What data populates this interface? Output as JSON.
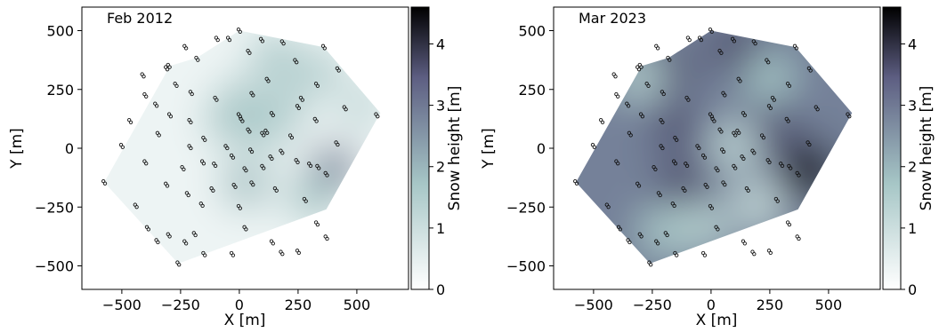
{
  "chart_data": [
    {
      "type": "heatmap",
      "title": "Feb 2012",
      "xlabel": "X [m]",
      "ylabel": "Y [m]",
      "xlim": [
        -670,
        720
      ],
      "ylim": [
        -600,
        600
      ],
      "xticks": [
        -500,
        -250,
        0,
        250,
        500
      ],
      "yticks": [
        -500,
        -250,
        0,
        250,
        500
      ],
      "xticklabels": [
        "−500",
        "−250",
        "0",
        "250",
        "500"
      ],
      "yticklabels": [
        "−500",
        "−250",
        "0",
        "250",
        "500"
      ],
      "colorbar": {
        "label": "Snow height [m]",
        "range": [
          0,
          4.6
        ],
        "ticks": [
          0,
          1,
          2,
          3,
          4
        ],
        "colormap": "bone_r"
      },
      "base_value": 0.3,
      "blobs": [
        {
          "x": 150,
          "y": 390,
          "value": 1.4
        },
        {
          "x": 340,
          "y": 330,
          "value": 1.2
        },
        {
          "x": 10,
          "y": 200,
          "value": 1.3
        },
        {
          "x": 200,
          "y": 180,
          "value": 1.2
        },
        {
          "x": -40,
          "y": 120,
          "value": 1.5
        },
        {
          "x": 110,
          "y": 90,
          "value": 1.4
        },
        {
          "x": 400,
          "y": -90,
          "value": 2.6
        },
        {
          "x": 310,
          "y": -210,
          "value": 1.5
        },
        {
          "x": 30,
          "y": -150,
          "value": 1.6
        },
        {
          "x": 520,
          "y": 180,
          "value": 1.0
        }
      ]
    },
    {
      "type": "heatmap",
      "title": "Mar 2023",
      "xlabel": "X [m]",
      "ylabel": "Y [m]",
      "xlim": [
        -670,
        720
      ],
      "ylim": [
        -600,
        600
      ],
      "xticks": [
        -500,
        -250,
        0,
        250,
        500
      ],
      "yticks": [
        -500,
        -250,
        0,
        250,
        500
      ],
      "xticklabels": [
        "−500",
        "−250",
        "0",
        "250",
        "500"
      ],
      "yticklabels": [
        "−500",
        "−250",
        "0",
        "250",
        "500"
      ],
      "colorbar": {
        "label": "Snow height [m]",
        "range": [
          0,
          4.6
        ],
        "ticks": [
          0,
          1,
          2,
          3,
          4
        ],
        "colormap": "bone_r"
      },
      "base_value": 2.5,
      "blobs": [
        {
          "x": 420,
          "y": -100,
          "value": 4.6
        },
        {
          "x": 100,
          "y": 430,
          "value": 3.3
        },
        {
          "x": -180,
          "y": 330,
          "value": 3.3
        },
        {
          "x": -150,
          "y": 90,
          "value": 3.2
        },
        {
          "x": -120,
          "y": -150,
          "value": 3.3
        },
        {
          "x": 280,
          "y": 70,
          "value": 3.2
        },
        {
          "x": -300,
          "y": 300,
          "value": 1.3
        },
        {
          "x": 100,
          "y": 10,
          "value": 1.1
        },
        {
          "x": 200,
          "y": -240,
          "value": 1.0
        },
        {
          "x": -30,
          "y": -330,
          "value": 1.2
        },
        {
          "x": 250,
          "y": 300,
          "value": 1.5
        },
        {
          "x": -200,
          "y": -350,
          "value": 1.4
        }
      ]
    }
  ],
  "station_points": [
    [
      0,
      500
    ],
    [
      -45,
      465
    ],
    [
      -95,
      465
    ],
    [
      95,
      460
    ],
    [
      185,
      450
    ],
    [
      360,
      430
    ],
    [
      -230,
      430
    ],
    [
      40,
      410
    ],
    [
      -180,
      380
    ],
    [
      -300,
      350
    ],
    [
      -310,
      340
    ],
    [
      240,
      370
    ],
    [
      420,
      335
    ],
    [
      -410,
      310
    ],
    [
      330,
      270
    ],
    [
      120,
      290
    ],
    [
      -270,
      270
    ],
    [
      -400,
      225
    ],
    [
      -205,
      235
    ],
    [
      -100,
      210
    ],
    [
      55,
      230
    ],
    [
      265,
      210
    ],
    [
      250,
      175
    ],
    [
      450,
      170
    ],
    [
      -355,
      185
    ],
    [
      -295,
      140
    ],
    [
      0,
      140
    ],
    [
      140,
      145
    ],
    [
      10,
      120
    ],
    [
      -210,
      115
    ],
    [
      325,
      120
    ],
    [
      115,
      70
    ],
    [
      585,
      140
    ],
    [
      -465,
      115
    ],
    [
      -150,
      40
    ],
    [
      40,
      75
    ],
    [
      -345,
      60
    ],
    [
      100,
      60
    ],
    [
      220,
      50
    ],
    [
      415,
      20
    ],
    [
      -500,
      10
    ],
    [
      -210,
      5
    ],
    [
      -55,
      5
    ],
    [
      50,
      -10
    ],
    [
      180,
      -15
    ],
    [
      135,
      -40
    ],
    [
      -30,
      -35
    ],
    [
      -400,
      -60
    ],
    [
      -105,
      -70
    ],
    [
      -155,
      -60
    ],
    [
      300,
      -70
    ],
    [
      245,
      -55
    ],
    [
      335,
      -80
    ],
    [
      25,
      -90
    ],
    [
      100,
      -80
    ],
    [
      -240,
      -85
    ],
    [
      370,
      -110
    ],
    [
      -575,
      -145
    ],
    [
      -310,
      -155
    ],
    [
      -20,
      -160
    ],
    [
      55,
      -150
    ],
    [
      -115,
      -175
    ],
    [
      -220,
      -195
    ],
    [
      155,
      -175
    ],
    [
      280,
      -220
    ],
    [
      -440,
      -245
    ],
    [
      -160,
      -240
    ],
    [
      0,
      -250
    ],
    [
      330,
      -320
    ],
    [
      -390,
      -340
    ],
    [
      25,
      -340
    ],
    [
      -300,
      -370
    ],
    [
      -190,
      -365
    ],
    [
      370,
      -380
    ],
    [
      140,
      -400
    ],
    [
      -350,
      -395
    ],
    [
      -230,
      -400
    ],
    [
      250,
      -440
    ],
    [
      -150,
      -450
    ],
    [
      180,
      -445
    ],
    [
      -30,
      -450
    ],
    [
      -260,
      -490
    ]
  ]
}
